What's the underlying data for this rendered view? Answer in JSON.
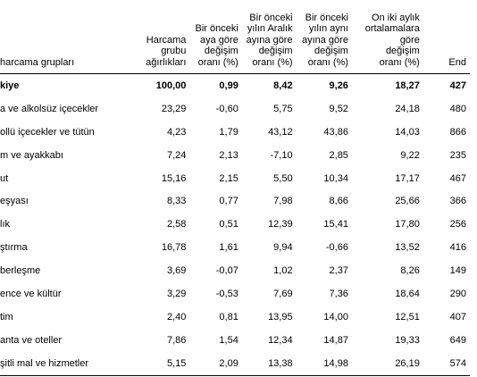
{
  "headers": {
    "group": "harcama grupları",
    "weight": "Harcama\ngrubu\nağırlıkları",
    "monthly": "Bir önceki\naya göre\ndeğişim\noranı (%)",
    "dec": "Bir önceki\nyılın Aralık\nayına göre\ndeğişim\noranı (%)",
    "yoy": "Bir önceki\nyılın aynı\nayına göre\ndeğişim\noranı (%)",
    "avg12": "On iki aylık\nortalamalara\ngöre\ndeğişim\noranı (%)",
    "index": "End"
  },
  "rows": [
    {
      "name": "kiye",
      "weight": "100,00",
      "monthly": "0,99",
      "dec": "8,42",
      "yoy": "9,26",
      "avg12": "18,27",
      "index": "427"
    },
    {
      "name": "a ve alkolsüz içecekler",
      "weight": "23,29",
      "monthly": "-0,60",
      "dec": "5,75",
      "yoy": "9,52",
      "avg12": "24,18",
      "index": "480"
    },
    {
      "name": "ollü içecekler ve tütün",
      "weight": "4,23",
      "monthly": "1,79",
      "dec": "43,12",
      "yoy": "43,86",
      "avg12": "14,03",
      "index": "866"
    },
    {
      "name": "m ve ayakkabı",
      "weight": "7,24",
      "monthly": "2,13",
      "dec": "-7,10",
      "yoy": "2,85",
      "avg12": "9,22",
      "index": "235"
    },
    {
      "name": "ut",
      "weight": "15,16",
      "monthly": "2,15",
      "dec": "5,50",
      "yoy": "10,34",
      "avg12": "17,17",
      "index": "467"
    },
    {
      "name": "eşyası",
      "weight": "8,33",
      "monthly": "0,77",
      "dec": "7,98",
      "yoy": "8,66",
      "avg12": "25,66",
      "index": "366"
    },
    {
      "name": "lık",
      "weight": "2,58",
      "monthly": "0,51",
      "dec": "12,39",
      "yoy": "15,41",
      "avg12": "17,80",
      "index": "256"
    },
    {
      "name": "ştırma",
      "weight": "16,78",
      "monthly": "1,61",
      "dec": "9,94",
      "yoy": "-0,66",
      "avg12": "13,52",
      "index": "416"
    },
    {
      "name": "berleşme",
      "weight": "3,69",
      "monthly": "-0,07",
      "dec": "1,02",
      "yoy": "2,37",
      "avg12": "8,26",
      "index": "149"
    },
    {
      "name": "ence ve kültür",
      "weight": "3,29",
      "monthly": "-0,53",
      "dec": "7,69",
      "yoy": "7,36",
      "avg12": "18,64",
      "index": "290"
    },
    {
      "name": "tim",
      "weight": "2,40",
      "monthly": "0,81",
      "dec": "13,95",
      "yoy": "14,00",
      "avg12": "12,51",
      "index": "407"
    },
    {
      "name": "anta ve oteller",
      "weight": "7,86",
      "monthly": "1,54",
      "dec": "12,34",
      "yoy": "14,87",
      "avg12": "19,33",
      "index": "649"
    },
    {
      "name": "şitli mal ve hizmetler",
      "weight": "5,15",
      "monthly": "2,09",
      "dec": "13,38",
      "yoy": "14,98",
      "avg12": "26,19",
      "index": "574"
    }
  ]
}
